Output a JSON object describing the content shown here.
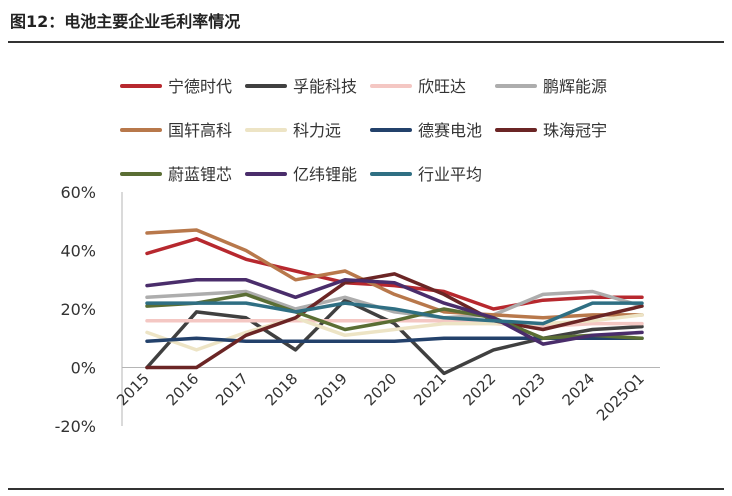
{
  "header": {
    "title": "图12：电池主要企业毛利率情况"
  },
  "chart_data": {
    "type": "line",
    "title": "",
    "xlabel": "",
    "ylabel": "",
    "ylim": [
      -0.2,
      0.6
    ],
    "y_ticks": [
      "-20%",
      "0%",
      "20%",
      "40%",
      "60%"
    ],
    "y_tick_values": [
      -0.2,
      0.0,
      0.2,
      0.4,
      0.6
    ],
    "grid": false,
    "legend_position": "top",
    "categories": [
      "2015",
      "2016",
      "2017",
      "2018",
      "2019",
      "2020",
      "2021",
      "2022",
      "2023",
      "2024",
      "2025Q1"
    ],
    "series": [
      {
        "name": "宁德时代",
        "color": "#B7282E",
        "values": [
          0.39,
          0.44,
          0.37,
          0.33,
          0.29,
          0.28,
          0.26,
          0.2,
          0.23,
          0.24,
          0.24
        ]
      },
      {
        "name": "孚能科技",
        "color": "#404040",
        "values": [
          0.0,
          0.19,
          0.17,
          0.06,
          0.23,
          0.15,
          -0.02,
          0.06,
          0.1,
          0.13,
          0.14
        ]
      },
      {
        "name": "欣旺达",
        "color": "#F4C7C3",
        "values": [
          0.16,
          0.16,
          0.16,
          0.16,
          0.16,
          0.16,
          0.16,
          0.15,
          0.14,
          0.15,
          0.15
        ]
      },
      {
        "name": "鹏辉能源",
        "color": "#ADADAD",
        "values": [
          0.24,
          0.25,
          0.26,
          0.2,
          0.24,
          0.19,
          0.17,
          0.18,
          0.25,
          0.26,
          0.21
        ]
      },
      {
        "name": "国轩高科",
        "color": "#B8784B",
        "values": [
          0.46,
          0.47,
          0.4,
          0.3,
          0.33,
          0.25,
          0.19,
          0.18,
          0.17,
          0.18,
          0.18
        ]
      },
      {
        "name": "科力远",
        "color": "#EDE4C5",
        "values": [
          0.12,
          0.06,
          0.12,
          0.17,
          0.11,
          0.13,
          0.15,
          0.15,
          0.15,
          0.16,
          0.18
        ]
      },
      {
        "name": "德赛电池",
        "color": "#23416B",
        "values": [
          0.09,
          0.1,
          0.09,
          0.09,
          0.09,
          0.09,
          0.1,
          0.1,
          0.1,
          0.1,
          0.1
        ]
      },
      {
        "name": "珠海冠宇",
        "color": "#6B2525",
        "values": [
          0.0,
          0.0,
          0.11,
          0.17,
          0.29,
          0.32,
          0.25,
          0.16,
          0.13,
          0.17,
          0.21
        ]
      },
      {
        "name": "蔚蓝锂芯",
        "color": "#5A6E34",
        "values": [
          0.21,
          0.22,
          0.25,
          0.19,
          0.13,
          0.16,
          0.2,
          0.17,
          0.1,
          0.11,
          0.1
        ]
      },
      {
        "name": "亿纬锂能",
        "color": "#4A2D6B",
        "values": [
          0.28,
          0.3,
          0.3,
          0.24,
          0.3,
          0.29,
          0.22,
          0.17,
          0.08,
          0.11,
          0.12
        ]
      },
      {
        "name": "行业平均",
        "color": "#2F6F83",
        "values": [
          0.22,
          0.22,
          0.22,
          0.19,
          0.22,
          0.2,
          0.17,
          0.16,
          0.15,
          0.22,
          0.22
        ]
      }
    ]
  }
}
